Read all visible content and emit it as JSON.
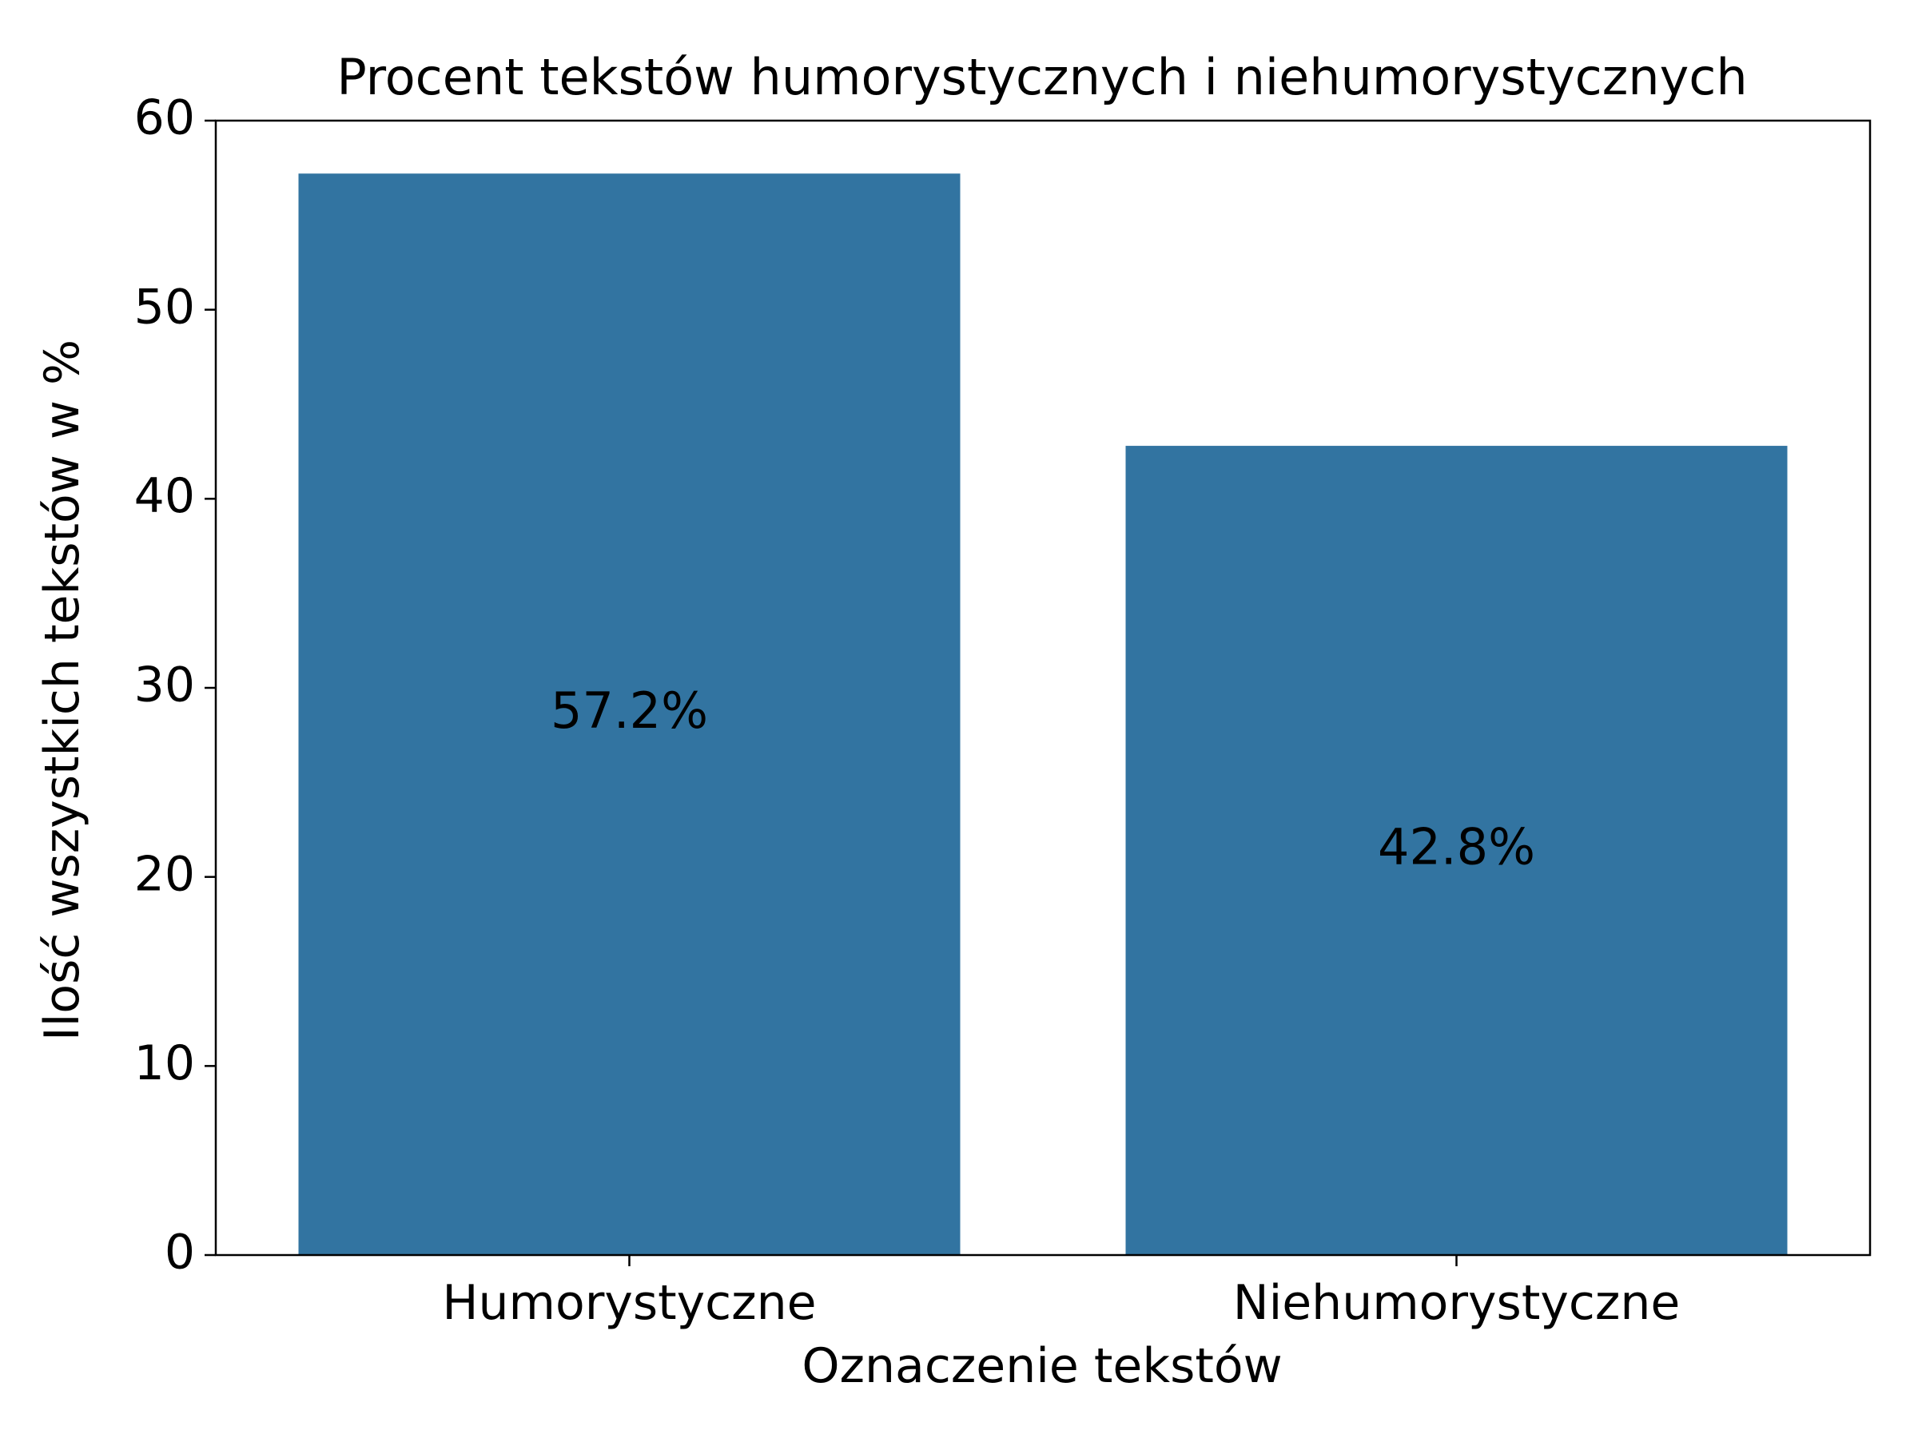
{
  "chart_data": {
    "type": "bar",
    "title": "Procent tekstów humorystycznych i niehumorystycznych",
    "xlabel": "Oznaczenie tekstów",
    "ylabel": "Ilość wszystkich tekstów w %",
    "categories": [
      "Humorystyczne",
      "Niehumorystyczne"
    ],
    "values": [
      57.2,
      42.8
    ],
    "data_labels": [
      "57.2%",
      "42.8%"
    ],
    "ylim": [
      0,
      60
    ],
    "yticks": [
      0,
      10,
      20,
      30,
      40,
      50,
      60
    ],
    "ytick_labels": [
      "0",
      "10",
      "20",
      "30",
      "40",
      "50",
      "60"
    ],
    "bar_color": "#3274a1",
    "grid": false,
    "legend": "none"
  }
}
